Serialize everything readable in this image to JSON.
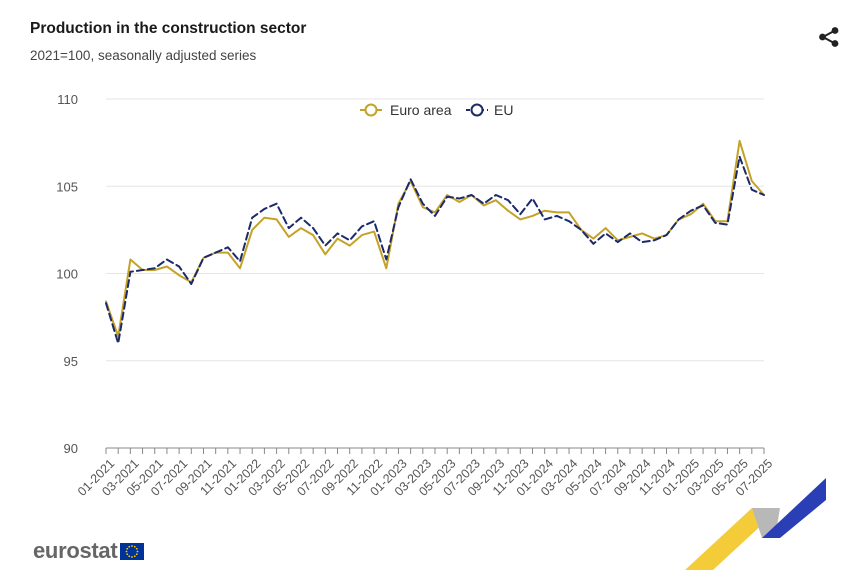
{
  "header": {
    "title": "Production in the construction sector",
    "subtitle": "2021=100, seasonally adjusted series"
  },
  "icons": {
    "share": "share-icon",
    "logo": "eurostat-logo",
    "flag": "eu-flag-icon"
  },
  "footer": {
    "logo_text": "eurostat"
  },
  "colors": {
    "euro_area": "#c5a227",
    "eu": "#1b2a6b",
    "grid": "#e6e6e6",
    "axis_text": "#555555",
    "deco_yellow": "#f3c623",
    "deco_blue": "#2a3fb5",
    "deco_grey": "#b8b8b8"
  },
  "chart_data": {
    "type": "line",
    "title": "Production in the construction sector",
    "subtitle": "2021=100, seasonally adjusted series",
    "xlabel": "",
    "ylabel": "",
    "ylim": [
      90,
      110
    ],
    "yticks": [
      "90",
      "95",
      "100",
      "105",
      "110"
    ],
    "legend_position": "top-center",
    "grid": true,
    "x": [
      "01-2021",
      "02-2021",
      "03-2021",
      "04-2021",
      "05-2021",
      "06-2021",
      "07-2021",
      "08-2021",
      "09-2021",
      "10-2021",
      "11-2021",
      "12-2021",
      "01-2022",
      "02-2022",
      "03-2022",
      "04-2022",
      "05-2022",
      "06-2022",
      "07-2022",
      "08-2022",
      "09-2022",
      "10-2022",
      "11-2022",
      "12-2022",
      "01-2023",
      "02-2023",
      "03-2023",
      "04-2023",
      "05-2023",
      "06-2023",
      "07-2023",
      "08-2023",
      "09-2023",
      "10-2023",
      "11-2023",
      "12-2023",
      "01-2024",
      "02-2024",
      "03-2024",
      "04-2024",
      "05-2024",
      "06-2024",
      "07-2024",
      "08-2024",
      "09-2024",
      "10-2024",
      "11-2024",
      "12-2024",
      "01-2025",
      "02-2025",
      "03-2025",
      "04-2025",
      "05-2025",
      "06-2025",
      "07-2025"
    ],
    "xtick_labels": [
      "01-2021",
      "03-2021",
      "05-2021",
      "07-2021",
      "09-2021",
      "11-2021",
      "01-2022",
      "03-2022",
      "05-2022",
      "07-2022",
      "09-2022",
      "11-2022",
      "01-2023",
      "03-2023",
      "05-2023",
      "07-2023",
      "09-2023",
      "11-2023",
      "01-2024",
      "03-2024",
      "05-2024",
      "07-2024",
      "09-2024",
      "11-2024",
      "01-2025",
      "03-2025",
      "05-2025",
      "07-2025"
    ],
    "series": [
      {
        "name": "Euro area",
        "style": "solid",
        "color": "#c5a227",
        "values": [
          98.4,
          96.4,
          100.8,
          100.2,
          100.2,
          100.4,
          99.9,
          99.5,
          100.9,
          101.2,
          101.2,
          100.3,
          102.5,
          103.2,
          103.1,
          102.1,
          102.6,
          102.2,
          101.1,
          102.0,
          101.6,
          102.2,
          102.4,
          100.3,
          104.0,
          105.3,
          103.8,
          103.5,
          104.5,
          104.1,
          104.5,
          103.9,
          104.2,
          103.6,
          103.1,
          103.3,
          103.6,
          103.5,
          103.5,
          102.5,
          102.0,
          102.6,
          101.9,
          102.1,
          102.3,
          102.0,
          102.2,
          103.1,
          103.4,
          104.0,
          103.0,
          103.0,
          107.6,
          105.3,
          104.5
        ]
      },
      {
        "name": "EU",
        "style": "dashed",
        "color": "#1b2a6b",
        "values": [
          98.3,
          96.0,
          100.1,
          100.2,
          100.3,
          100.8,
          100.4,
          99.4,
          100.9,
          101.2,
          101.5,
          100.7,
          103.2,
          103.7,
          104.0,
          102.6,
          103.2,
          102.6,
          101.6,
          102.3,
          101.9,
          102.7,
          103.0,
          100.8,
          103.8,
          105.4,
          104.0,
          103.3,
          104.4,
          104.3,
          104.5,
          104.0,
          104.5,
          104.2,
          103.4,
          104.3,
          103.1,
          103.3,
          103.0,
          102.5,
          101.7,
          102.3,
          101.8,
          102.3,
          101.8,
          101.9,
          102.2,
          103.1,
          103.6,
          103.9,
          102.9,
          102.8,
          106.7,
          104.8,
          104.5
        ]
      }
    ]
  }
}
